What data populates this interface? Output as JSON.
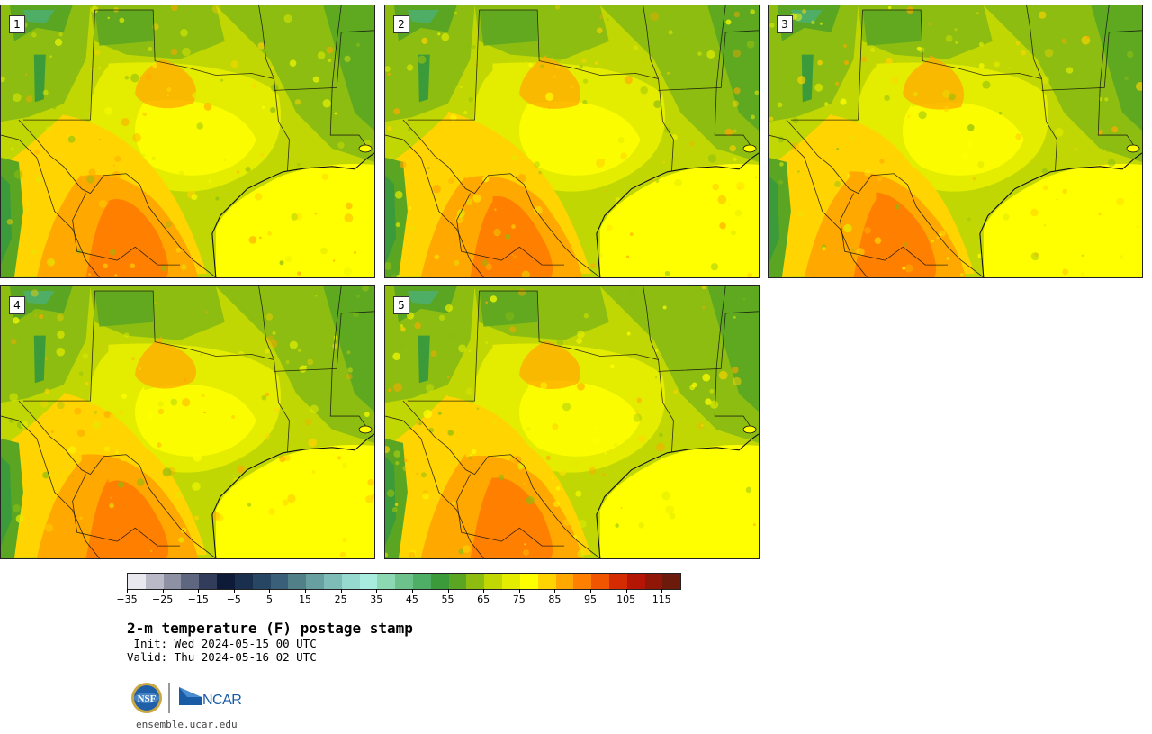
{
  "panels": [
    {
      "label": "1",
      "variant": 0
    },
    {
      "label": "2",
      "variant": 1
    },
    {
      "label": "3",
      "variant": 2
    },
    {
      "label": "4",
      "variant": 3
    },
    {
      "label": "5",
      "variant": 4
    }
  ],
  "colorbar": {
    "colors": [
      "#e8e8ee",
      "#b9b9c8",
      "#8e91a4",
      "#5f6780",
      "#323d5c",
      "#0d1a38",
      "#1a2f4e",
      "#264664",
      "#3a5f78",
      "#518089",
      "#68a0a2",
      "#7ebcb7",
      "#95d9cf",
      "#a8ecdf",
      "#8cd8b3",
      "#6dc28c",
      "#4fae66",
      "#3b9a3a",
      "#5aa623",
      "#8cbd10",
      "#c0d703",
      "#e4ec00",
      "#ffff00",
      "#ffd400",
      "#ffa800",
      "#ff7f00",
      "#f25500",
      "#d42c00",
      "#b51505",
      "#901708",
      "#6b1a0c"
    ],
    "tick_labels": [
      "−35",
      "−25",
      "−15",
      "−5",
      "5",
      "15",
      "25",
      "35",
      "45",
      "55",
      "65",
      "75",
      "85",
      "95",
      "105",
      "115"
    ]
  },
  "title": "2-m temperature (F) postage stamp",
  "init": " Init: Wed 2024-05-15 00 UTC",
  "valid": "Valid: Thu 2024-05-16 02 UTC",
  "logos": {
    "nsf": "NSF",
    "ncar": "NCAR"
  },
  "site": "ensemble.ucar.edu"
}
